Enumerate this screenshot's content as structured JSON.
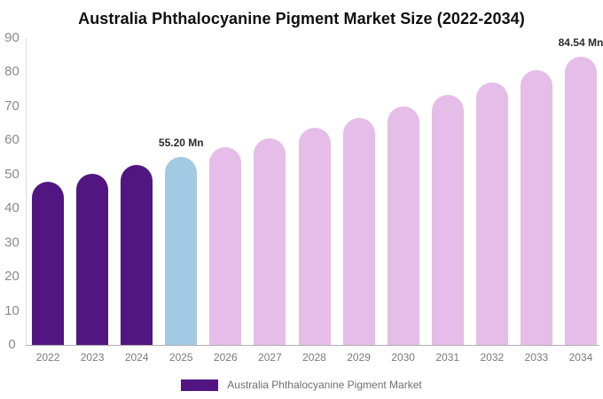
{
  "title": "Australia Phthalocyanine Pigment Market Size (2022-2034)",
  "legend": {
    "label": "Australia Phthalocyanine Pigment Market",
    "swatch_color": "#521682"
  },
  "colors": {
    "historical_bar": "#521682",
    "highlight_bar": "#A2CBE3",
    "forecast_bar": "#E5BDE8",
    "title_text": "#0f0f0f",
    "axis_text": "#8a8a8a",
    "category_text": "#7a7a7a",
    "annotation_text": "#2b2b2b",
    "legend_text": "#6f6f6f",
    "y_axis_line": "#dddddd",
    "x_axis_line": "#b0b0b0",
    "background": "#ffffff"
  },
  "chart_data": {
    "type": "bar",
    "title": "Australia Phthalocyanine Pigment Market Size (2022-2034)",
    "unit": "Mn",
    "categories": [
      "2022",
      "2023",
      "2024",
      "2025",
      "2026",
      "2027",
      "2028",
      "2029",
      "2030",
      "2031",
      "2032",
      "2033",
      "2034"
    ],
    "values": [
      47.9,
      50.2,
      52.7,
      55.2,
      57.9,
      60.7,
      63.6,
      66.7,
      69.9,
      73.3,
      76.9,
      80.6,
      84.54
    ],
    "bar_colors": [
      "#521682",
      "#521682",
      "#521682",
      "#A2CBE3",
      "#E5BDE8",
      "#E5BDE8",
      "#E5BDE8",
      "#E5BDE8",
      "#E5BDE8",
      "#E5BDE8",
      "#E5BDE8",
      "#E5BDE8",
      "#E5BDE8"
    ],
    "annotations": [
      {
        "category": "2025",
        "text": "55.20 Mn"
      },
      {
        "category": "2034",
        "text": "84.54 Mn"
      }
    ],
    "xlabel": "",
    "ylabel": "",
    "ylim": [
      0,
      90
    ],
    "yticks": [
      0,
      10,
      20,
      30,
      40,
      50,
      60,
      70,
      80,
      90
    ],
    "grid": false,
    "legend_position": "bottom",
    "legend_entries": [
      "Australia Phthalocyanine Pigment Market"
    ]
  }
}
